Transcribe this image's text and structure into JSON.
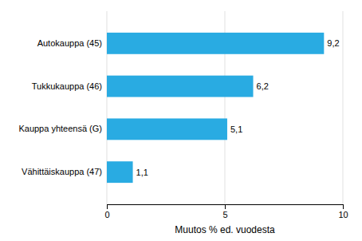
{
  "chart_data": {
    "type": "bar",
    "orientation": "horizontal",
    "categories": [
      "Vähittäiskauppa (47)",
      "Kauppa yhteensä (G)",
      "Tukkukauppa (46)",
      "Autokauppa (45)"
    ],
    "values": [
      1.1,
      5.1,
      6.2,
      9.2
    ],
    "value_labels": [
      "1,1",
      "5,1",
      "6,2",
      "9,2"
    ],
    "data_labels": true,
    "color": "#29ABE2",
    "xlabel": "Muutos % ed. vuodesta",
    "xlim": [
      0,
      10
    ],
    "xticks": [
      0,
      5,
      10
    ],
    "grid": true
  }
}
